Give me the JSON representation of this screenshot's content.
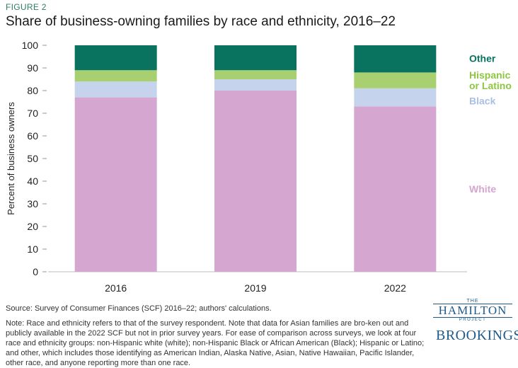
{
  "figure_label": "FIGURE 2",
  "title": "Share of business-owning families by race and ethnicity, 2016–22",
  "source": "Source: Survey of Consumer Finances (SCF) 2016–22; authors' calculations.",
  "note": "Note: Race and ethnicity refers to that of the survey respondent. Note that data for Asian families are bro-ken out and publicly available in the 2022 SCF but not in prior survey years. For ease of comparison across surveys, we look at four race and ethnicity groups: non-Hispanic white (white); non-Hispanic Black or African American (Black); Hispanic or Latino; and other, which includes those identifying as American Indian, Alaska Native, Asian, Native Hawaiian, Pacific Islander, other race, and anyone reporting more than one race.",
  "logos": {
    "hamilton_the": "THE",
    "hamilton_name": "HAMILTON",
    "hamilton_project": "PROJECT",
    "brookings": "BROOKINGS"
  },
  "chart_data": {
    "type": "bar",
    "stacked": true,
    "categories": [
      "2016",
      "2019",
      "2022"
    ],
    "series": [
      {
        "name": "White",
        "values": [
          77,
          80,
          73
        ],
        "color": "#d5a6cf"
      },
      {
        "name": "Black",
        "values": [
          7,
          5,
          8
        ],
        "color": "#c5d4ec"
      },
      {
        "name": "Hispanic or Latino",
        "values": [
          5,
          4,
          7
        ],
        "color": "#a8d070"
      },
      {
        "name": "Other",
        "values": [
          11,
          11,
          12
        ],
        "color": "#0a735f"
      }
    ],
    "ylabel": "Percent of business owners",
    "ylim": [
      0,
      100
    ],
    "yticks": [
      0,
      10,
      20,
      30,
      40,
      50,
      60,
      70,
      80,
      90,
      100
    ],
    "legend": [
      {
        "lines": [
          "Other"
        ],
        "color": "#0a735f"
      },
      {
        "lines": [
          "Hispanic",
          "or Latino"
        ],
        "color": "#8dc63f"
      },
      {
        "lines": [
          "Black"
        ],
        "color": "#a9c0e4"
      },
      {
        "lines": [
          "White"
        ],
        "color": "#d5a6cf"
      }
    ],
    "legend_position": "right, inline",
    "grid": false
  }
}
